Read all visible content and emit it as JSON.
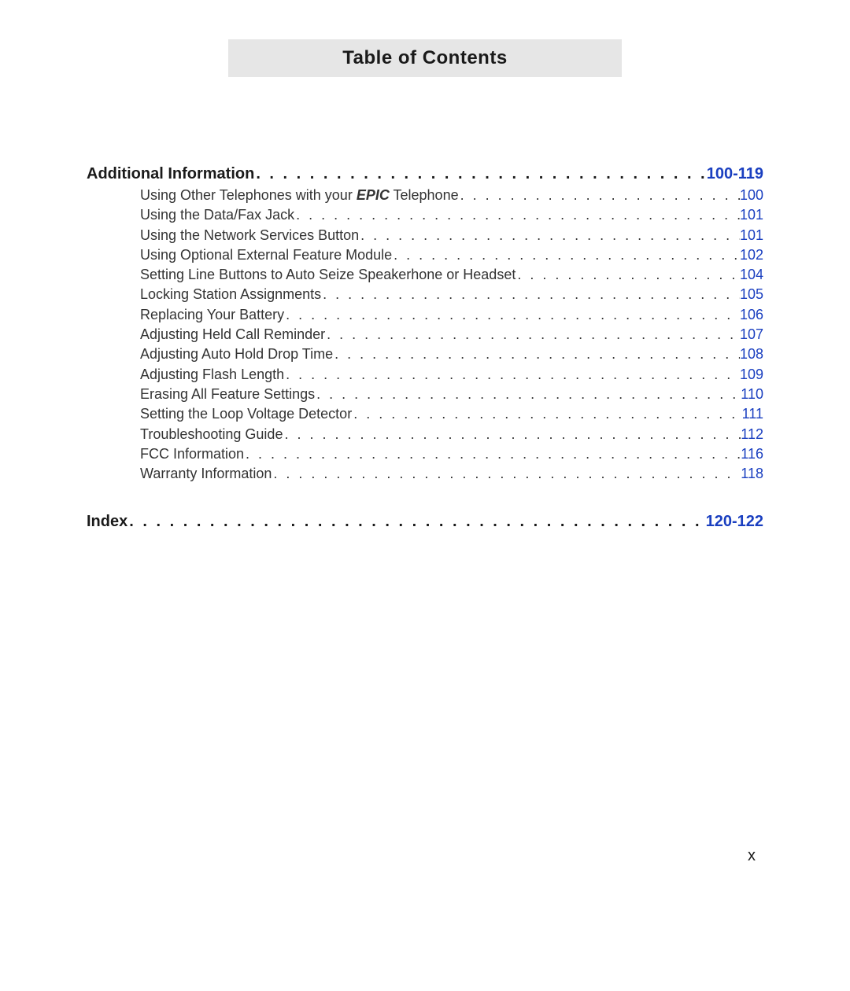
{
  "title": "Table of Contents",
  "link_color": "#1a3fc0",
  "page_number": "x",
  "sections": [
    {
      "label": "Additional Information",
      "pages": "100-119",
      "entries": [
        {
          "label_pre": "Using Other Telephones with your ",
          "label_em": "EPIC",
          "label_post": " Telephone",
          "page": "100"
        },
        {
          "label": "Using the Data/Fax Jack",
          "page": "101"
        },
        {
          "label": "Using the Network Services Button",
          "page": "101"
        },
        {
          "label": "Using Optional External Feature Module",
          "page": "102"
        },
        {
          "label": "Setting Line Buttons to Auto Seize Speakerhone or Headset",
          "page": "104"
        },
        {
          "label": "Locking Station Assignments",
          "page": "105"
        },
        {
          "label": "Replacing Your Battery",
          "page": "106"
        },
        {
          "label": "Adjusting Held Call Reminder",
          "page": "107"
        },
        {
          "label": "Adjusting Auto Hold Drop Time",
          "page": "108"
        },
        {
          "label": "Adjusting Flash Length",
          "page": "109"
        },
        {
          "label": "Erasing All Feature Settings",
          "page": "110"
        },
        {
          "label": "Setting the Loop Voltage Detector",
          "page": "111"
        },
        {
          "label": "Troubleshooting Guide",
          "page": "112"
        },
        {
          "label": "FCC Information",
          "page": "116"
        },
        {
          "label": "Warranty Information",
          "page": "118"
        }
      ]
    },
    {
      "label": "Index",
      "pages": "120-122",
      "entries": []
    }
  ]
}
